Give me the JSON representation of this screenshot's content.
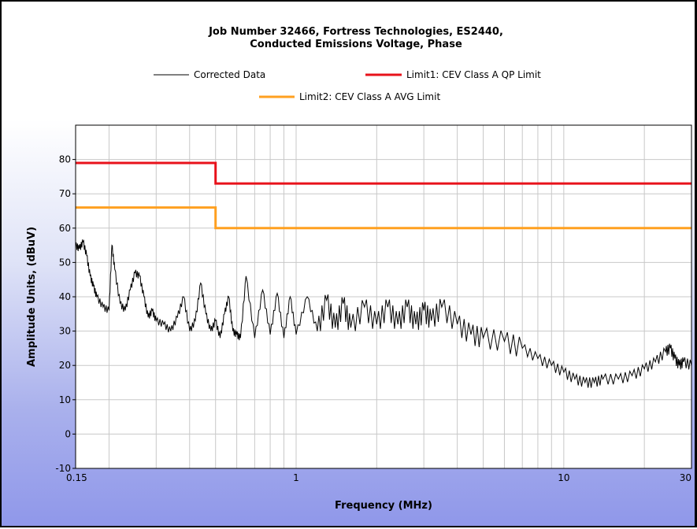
{
  "chart_data": {
    "type": "line",
    "title_lines": [
      "Job Number 32466, Fortress Technologies, ES2440,",
      "Conducted Emissions Voltage, Phase"
    ],
    "xlabel": "Frequency (MHz)",
    "ylabel": "Amplitude Units, (dBuV)",
    "x_scale": "log",
    "xlim": [
      0.15,
      30
    ],
    "ylim": [
      -10,
      90
    ],
    "x_tick_labels": [
      "0.15",
      "1",
      "10",
      "30"
    ],
    "y_tick_labels": [
      "80",
      "70",
      "60",
      "50",
      "40",
      "30",
      "20",
      "10",
      "0",
      "-10"
    ],
    "grid": true,
    "legend_position": "top",
    "colors": {
      "corrected": "#000000",
      "limit1": "#e8121b",
      "limit2": "#ffa020"
    },
    "series": [
      {
        "name": "Corrected Data",
        "color": "#000000",
        "x": [
          0.15,
          0.155,
          0.16,
          0.165,
          0.17,
          0.175,
          0.18,
          0.19,
          0.2,
          0.205,
          0.21,
          0.22,
          0.23,
          0.24,
          0.25,
          0.26,
          0.27,
          0.28,
          0.29,
          0.3,
          0.32,
          0.34,
          0.36,
          0.38,
          0.4,
          0.42,
          0.44,
          0.46,
          0.48,
          0.5,
          0.52,
          0.54,
          0.56,
          0.58,
          0.6,
          0.62,
          0.65,
          0.7,
          0.75,
          0.8,
          0.85,
          0.9,
          0.95,
          1.0,
          1.1,
          1.2,
          1.3,
          1.4,
          1.5,
          1.6,
          1.8,
          2.0,
          2.2,
          2.4,
          2.6,
          2.8,
          3.0,
          3.2,
          3.5,
          4.0,
          4.5,
          5.0,
          6.0,
          7.0,
          8.0,
          9.0,
          10.0,
          11.0,
          12.0,
          13.0,
          14.0,
          16.0,
          18.0,
          20.0,
          22.0,
          24.0,
          25.0,
          26.0,
          27.0,
          28.0,
          30.0
        ],
        "y": [
          55,
          54,
          56,
          52,
          46,
          43,
          40,
          37,
          36,
          55,
          48,
          38,
          36,
          42,
          47,
          46,
          40,
          34,
          36,
          33,
          32,
          30,
          34,
          40,
          30,
          33,
          44,
          35,
          30,
          33,
          28,
          35,
          40,
          30,
          29,
          28,
          46,
          28,
          42,
          29,
          41,
          28,
          40,
          29,
          40,
          30,
          39,
          31,
          38,
          31,
          37,
          32,
          37,
          32,
          37,
          32,
          36,
          33,
          37,
          32,
          29,
          28,
          27,
          25,
          22,
          20,
          18,
          16,
          15,
          15,
          16,
          16,
          17,
          19,
          21,
          24,
          25,
          22,
          20,
          21,
          20
        ]
      },
      {
        "name": "Limit1: CEV Class A QP Limit",
        "color": "#e8121b",
        "x": [
          0.15,
          0.5,
          0.5,
          30
        ],
        "y": [
          79,
          79,
          73,
          73
        ]
      },
      {
        "name": "Limit2: CEV Class A AVG Limit",
        "color": "#ffa020",
        "x": [
          0.15,
          0.5,
          0.5,
          30
        ],
        "y": [
          66,
          66,
          60,
          60
        ]
      }
    ]
  }
}
